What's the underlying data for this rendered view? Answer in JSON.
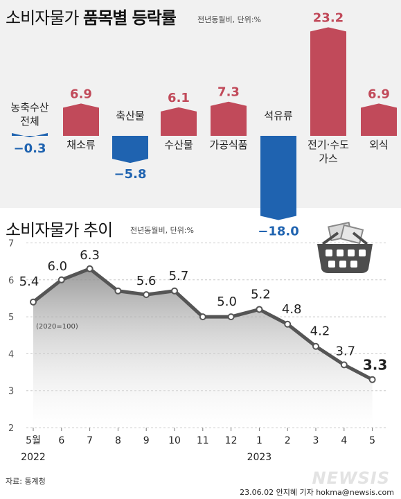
{
  "chart_data": [
    {
      "type": "bar",
      "title": "소비자물가 품목별 등락률",
      "title_light": "소비자물가 ",
      "title_bold": "품목별 등락률",
      "unit_note": "전년동월비, 단위:%",
      "categories": [
        "농축수산 전체",
        "채소류",
        "축산물",
        "수산물",
        "가공식품",
        "석유류",
        "전기·수도 가스",
        "외식"
      ],
      "category_lines": [
        [
          "농축수산",
          "전체"
        ],
        [
          "채소류"
        ],
        [
          "축산물"
        ],
        [
          "수산물"
        ],
        [
          "가공식품"
        ],
        [
          "석유류"
        ],
        [
          "전기·수도",
          "가스"
        ],
        [
          "외식"
        ]
      ],
      "values": [
        -0.3,
        6.9,
        -5.8,
        6.1,
        7.3,
        -18.0,
        23.2,
        6.9
      ],
      "value_labels": [
        "−0.3",
        "6.9",
        "−5.8",
        "6.1",
        "7.3",
        "−18.0",
        "23.2",
        "6.9"
      ],
      "positive_color": "#c14a5a",
      "negative_color": "#1f63b0"
    },
    {
      "type": "line",
      "title": "소비자물가 추이",
      "unit_note": "전년동월비, 단위:%",
      "base_note": "(2020=100)",
      "x": [
        "5월",
        "6",
        "7",
        "8",
        "9",
        "10",
        "11",
        "12",
        "1",
        "2",
        "3",
        "4",
        "5"
      ],
      "year_labels": [
        "2022",
        "2023"
      ],
      "values": [
        5.4,
        6.0,
        6.3,
        5.7,
        5.6,
        5.7,
        5.0,
        5.0,
        5.2,
        4.8,
        4.2,
        3.7,
        3.3
      ],
      "labeled_points": [
        {
          "index": 0,
          "label": "5.4"
        },
        {
          "index": 1,
          "label": "6.0"
        },
        {
          "index": 2,
          "label": "6.3"
        },
        {
          "index": 4,
          "label": "5.6"
        },
        {
          "index": 5,
          "label": "5.7"
        },
        {
          "index": 7,
          "label": "5.0"
        },
        {
          "index": 8,
          "label": "5.2"
        },
        {
          "index": 9,
          "label": "4.8"
        },
        {
          "index": 10,
          "label": "4.2"
        },
        {
          "index": 11,
          "label": "3.7"
        },
        {
          "index": 12,
          "label": "3.3"
        }
      ],
      "yticks": [
        "2",
        "3",
        "4",
        "5",
        "6",
        "7"
      ],
      "ylim": [
        2,
        7
      ],
      "line_color": "#555555"
    }
  ],
  "footer": {
    "source": "자료: 통계청",
    "credit": "23.06.02 안지혜 기자 hokma@newsis.com",
    "watermark": "NEWSIS"
  },
  "icons": {
    "basket": "shopping-basket-icon"
  }
}
